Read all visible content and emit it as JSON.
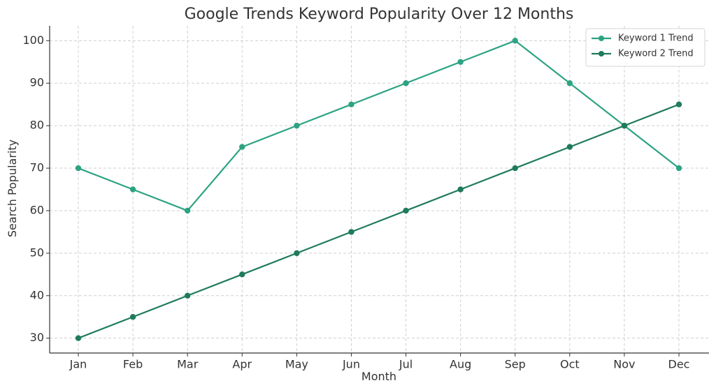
{
  "chart_data": {
    "type": "line",
    "title": "Google Trends Keyword Popularity Over 12 Months",
    "xlabel": "Month",
    "ylabel": "Search Popularity",
    "categories": [
      "Jan",
      "Feb",
      "Mar",
      "Apr",
      "May",
      "Jun",
      "Jul",
      "Aug",
      "Sep",
      "Oct",
      "Nov",
      "Dec"
    ],
    "yticks": [
      30,
      40,
      50,
      60,
      70,
      80,
      90,
      100
    ],
    "ylim": [
      26.5,
      103.5
    ],
    "grid": true,
    "legend_position": "top-right",
    "series": [
      {
        "name": "Keyword 1 Trend",
        "color": "#2ca383",
        "values": [
          70,
          65,
          60,
          75,
          80,
          85,
          90,
          95,
          100,
          90,
          80,
          70
        ]
      },
      {
        "name": "Keyword 2 Trend",
        "color": "#1e7b5c",
        "values": [
          30,
          35,
          40,
          45,
          50,
          55,
          60,
          65,
          70,
          75,
          80,
          85
        ]
      }
    ]
  }
}
